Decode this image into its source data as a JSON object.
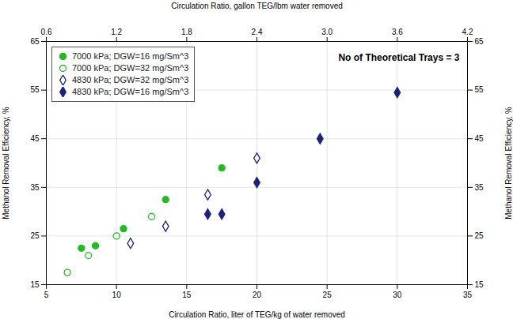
{
  "chart_data": {
    "type": "scatter",
    "x2label": "Circulation Ratio, gallon TEG/lbm water removed",
    "xlabel": "Circulation Ratio, liter of TEG/kg of water removed",
    "ylabel": "Methanol Removal Efficiency, %",
    "y2label": "Methanol Removal Efficiency, %",
    "annotations": [
      "No of Theoretical Trays = 3"
    ],
    "xlim": [
      5,
      35
    ],
    "xticks": [
      5,
      10,
      15,
      20,
      25,
      30,
      35
    ],
    "ylim": [
      15,
      65
    ],
    "yticks": [
      15,
      25,
      35,
      45,
      55,
      65
    ],
    "x2lim": [
      0.6,
      4.2
    ],
    "x2ticks": [
      0.6,
      1.2,
      1.8,
      2.4,
      {
        "value": 3.0,
        "label": "3.0"
      },
      3.6,
      4.2
    ],
    "y2lim": [
      15,
      65
    ],
    "y2ticks": [
      15,
      25,
      35,
      45,
      55,
      65
    ],
    "grid": true,
    "legend": "upper left",
    "series": [
      {
        "name": "7000 kPa; DGW=16 mg/Sm^3",
        "color": "#22BB22",
        "marker": "circle",
        "x": [
          7.5,
          8.5,
          10.5,
          13.5,
          17.5
        ],
        "y": [
          22.5,
          23.0,
          26.5,
          32.5,
          39.0
        ]
      },
      {
        "name": "7000 kPa; DGW=32 mg/Sm^3",
        "color": "#22BB22",
        "marker": "circle-open",
        "x": [
          6.5,
          8.0,
          10.0,
          12.5
        ],
        "y": [
          17.5,
          21.0,
          25.0,
          29.0
        ]
      },
      {
        "name": "4830 kPa; DGW=32 mg/Sm^3",
        "color": "#1a237e",
        "marker": "diamond-open",
        "x": [
          11.0,
          13.5,
          16.5,
          20.0
        ],
        "y": [
          23.5,
          27.0,
          33.5,
          41.0
        ]
      },
      {
        "name": "4830 kPa; DGW=16 mg/Sm^3",
        "color": "#1a237e",
        "marker": "diamond",
        "x": [
          16.5,
          17.5,
          20.0,
          24.5,
          30.0
        ],
        "y": [
          29.5,
          29.5,
          36.0,
          45.0,
          54.5
        ]
      }
    ]
  }
}
